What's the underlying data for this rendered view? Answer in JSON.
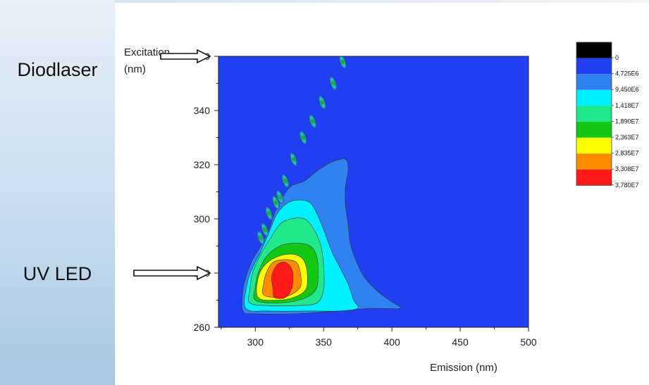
{
  "side_labels": {
    "diodlaser": "Diodlaser",
    "uv_led": "UV LED"
  },
  "chart_data": {
    "type": "heatmap",
    "subtype": "filled contour map",
    "title": "",
    "xlabel": "Emission (nm)",
    "ylabel_line1": "Excitation",
    "ylabel_line2": "(nm)",
    "xlim": [
      273,
      500
    ],
    "ylim": [
      260,
      360
    ],
    "x_ticks": [
      300,
      350,
      400,
      450,
      500
    ],
    "y_ticks": [
      260,
      280,
      300,
      320,
      340,
      360
    ],
    "grid": false,
    "colorbar": {
      "placement": "right",
      "levels": [
        "0",
        "4,725E6",
        "9,450E6",
        "1,418E7",
        "1,890E7",
        "2,363E7",
        "2,835E7",
        "3,308E7",
        "3,780E7"
      ],
      "colors": [
        "#000000",
        "#1f3ff0",
        "#2f82f0",
        "#00f0ff",
        "#22e88c",
        "#12c812",
        "#ffff00",
        "#ff8c00",
        "#ff1a1a"
      ]
    },
    "background_color": "#1f3ff0",
    "contour_levels": [
      {
        "level": 1,
        "color": "#2f82f0",
        "points": [
          [
            291,
            266
          ],
          [
            300,
            265
          ],
          [
            330,
            265
          ],
          [
            360,
            266
          ],
          [
            385,
            267
          ],
          [
            406,
            267
          ],
          [
            398,
            270
          ],
          [
            388,
            274
          ],
          [
            378,
            280
          ],
          [
            370,
            290
          ],
          [
            368,
            298
          ],
          [
            366,
            305
          ],
          [
            366,
            312
          ],
          [
            368,
            318
          ],
          [
            366,
            322
          ],
          [
            356,
            321
          ],
          [
            346,
            318
          ],
          [
            336,
            314
          ],
          [
            326,
            312
          ],
          [
            320,
            308
          ],
          [
            314,
            302
          ],
          [
            310,
            296
          ],
          [
            304,
            290
          ],
          [
            298,
            285
          ],
          [
            294,
            280
          ],
          [
            291,
            274
          ]
        ]
      },
      {
        "level": 2,
        "color": "#00f0ff",
        "points": [
          [
            293,
            267
          ],
          [
            310,
            266
          ],
          [
            340,
            266
          ],
          [
            360,
            266
          ],
          [
            375,
            267
          ],
          [
            372,
            270
          ],
          [
            368,
            276
          ],
          [
            362,
            282
          ],
          [
            356,
            288
          ],
          [
            350,
            296
          ],
          [
            345,
            302
          ],
          [
            340,
            306
          ],
          [
            332,
            307
          ],
          [
            324,
            306
          ],
          [
            316,
            302
          ],
          [
            310,
            295
          ],
          [
            304,
            288
          ],
          [
            298,
            282
          ],
          [
            294,
            276
          ]
        ]
      },
      {
        "level": 3,
        "color": "#22e88c",
        "points": [
          [
            296,
            269
          ],
          [
            310,
            268
          ],
          [
            330,
            268
          ],
          [
            345,
            269
          ],
          [
            350,
            274
          ],
          [
            350,
            282
          ],
          [
            348,
            290
          ],
          [
            343,
            296
          ],
          [
            336,
            300
          ],
          [
            326,
            300
          ],
          [
            318,
            298
          ],
          [
            310,
            292
          ],
          [
            303,
            286
          ],
          [
            298,
            280
          ],
          [
            296,
            274
          ]
        ]
      },
      {
        "level": 4,
        "color": "#12c812",
        "points": [
          [
            300,
            270
          ],
          [
            315,
            269
          ],
          [
            332,
            270
          ],
          [
            343,
            273
          ],
          [
            346,
            278
          ],
          [
            345,
            286
          ],
          [
            340,
            290
          ],
          [
            330,
            291
          ],
          [
            318,
            290
          ],
          [
            308,
            286
          ],
          [
            302,
            280
          ],
          [
            300,
            275
          ]
        ]
      },
      {
        "level": 5,
        "color": "#ffff00",
        "points": [
          [
            302,
            271
          ],
          [
            315,
            270
          ],
          [
            328,
            271
          ],
          [
            337,
            274
          ],
          [
            338,
            280
          ],
          [
            335,
            285
          ],
          [
            327,
            287
          ],
          [
            316,
            286
          ],
          [
            307,
            283
          ],
          [
            302,
            278
          ]
        ]
      },
      {
        "level": 6,
        "color": "#ff8c00",
        "points": [
          [
            306,
            272
          ],
          [
            316,
            271
          ],
          [
            326,
            272
          ],
          [
            333,
            275
          ],
          [
            333,
            280
          ],
          [
            330,
            284
          ],
          [
            322,
            285
          ],
          [
            313,
            284
          ],
          [
            308,
            280
          ],
          [
            306,
            276
          ]
        ]
      },
      {
        "level": 7,
        "color": "#ff1a1a",
        "points": [
          [
            314,
            271
          ],
          [
            322,
            271
          ],
          [
            327,
            275
          ],
          [
            327,
            281
          ],
          [
            322,
            284
          ],
          [
            316,
            283
          ],
          [
            312,
            279
          ],
          [
            313,
            274
          ]
        ]
      }
    ],
    "scatter_band_peaks": [
      {
        "x": 304,
        "y": 293
      },
      {
        "x": 307,
        "y": 296
      },
      {
        "x": 310,
        "y": 302
      },
      {
        "x": 315,
        "y": 306
      },
      {
        "x": 318,
        "y": 308
      },
      {
        "x": 322,
        "y": 314
      },
      {
        "x": 328,
        "y": 322
      },
      {
        "x": 335,
        "y": 330
      },
      {
        "x": 342,
        "y": 336
      },
      {
        "x": 349,
        "y": 343
      },
      {
        "x": 357,
        "y": 350
      },
      {
        "x": 364,
        "y": 358
      }
    ],
    "annotations": [
      {
        "text": "Diodlaser",
        "arrow_at": {
          "y": 360
        }
      },
      {
        "text": "UV LED",
        "arrow_at": {
          "y": 280
        }
      }
    ]
  }
}
